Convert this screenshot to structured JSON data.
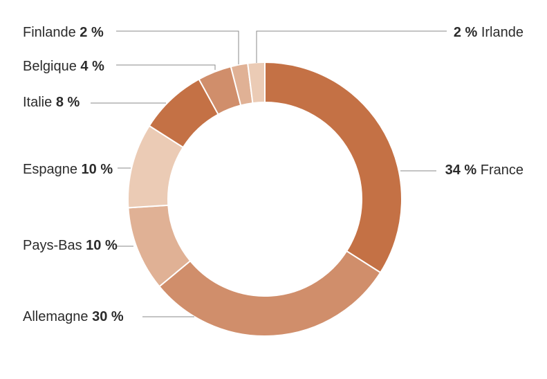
{
  "chart_data": {
    "type": "pie",
    "variant": "donut",
    "unit": "%",
    "categories": [
      "France",
      "Allemagne",
      "Pays-Bas",
      "Espagne",
      "Italie",
      "Belgique",
      "Finlande",
      "Irlande"
    ],
    "values": [
      34,
      30,
      10,
      10,
      8,
      4,
      2,
      2
    ],
    "labels": [
      {
        "name": "France",
        "value_text": "34 %",
        "side": "right",
        "value_first": true
      },
      {
        "name": "Allemagne",
        "value_text": "30 %",
        "side": "left",
        "value_first": false
      },
      {
        "name": "Pays-Bas",
        "value_text": "10 %",
        "side": "left",
        "value_first": false
      },
      {
        "name": "Espagne",
        "value_text": "10 %",
        "side": "left",
        "value_first": false
      },
      {
        "name": "Italie",
        "value_text": "8 %",
        "side": "left",
        "value_first": false
      },
      {
        "name": "Belgique",
        "value_text": "4 %",
        "side": "left",
        "value_first": false
      },
      {
        "name": "Finlande",
        "value_text": "2 %",
        "side": "left",
        "value_first": false
      },
      {
        "name": "Irlande",
        "value_text": "2 %",
        "side": "right",
        "value_first": true
      }
    ],
    "colors": [
      "#c47145",
      "#d08e6b",
      "#e0b195",
      "#ebcbb5",
      "#c47145",
      "#d08e6b",
      "#e0b195",
      "#ebcbb5"
    ],
    "leader_color": "#8a8a8a",
    "legend": "none"
  }
}
